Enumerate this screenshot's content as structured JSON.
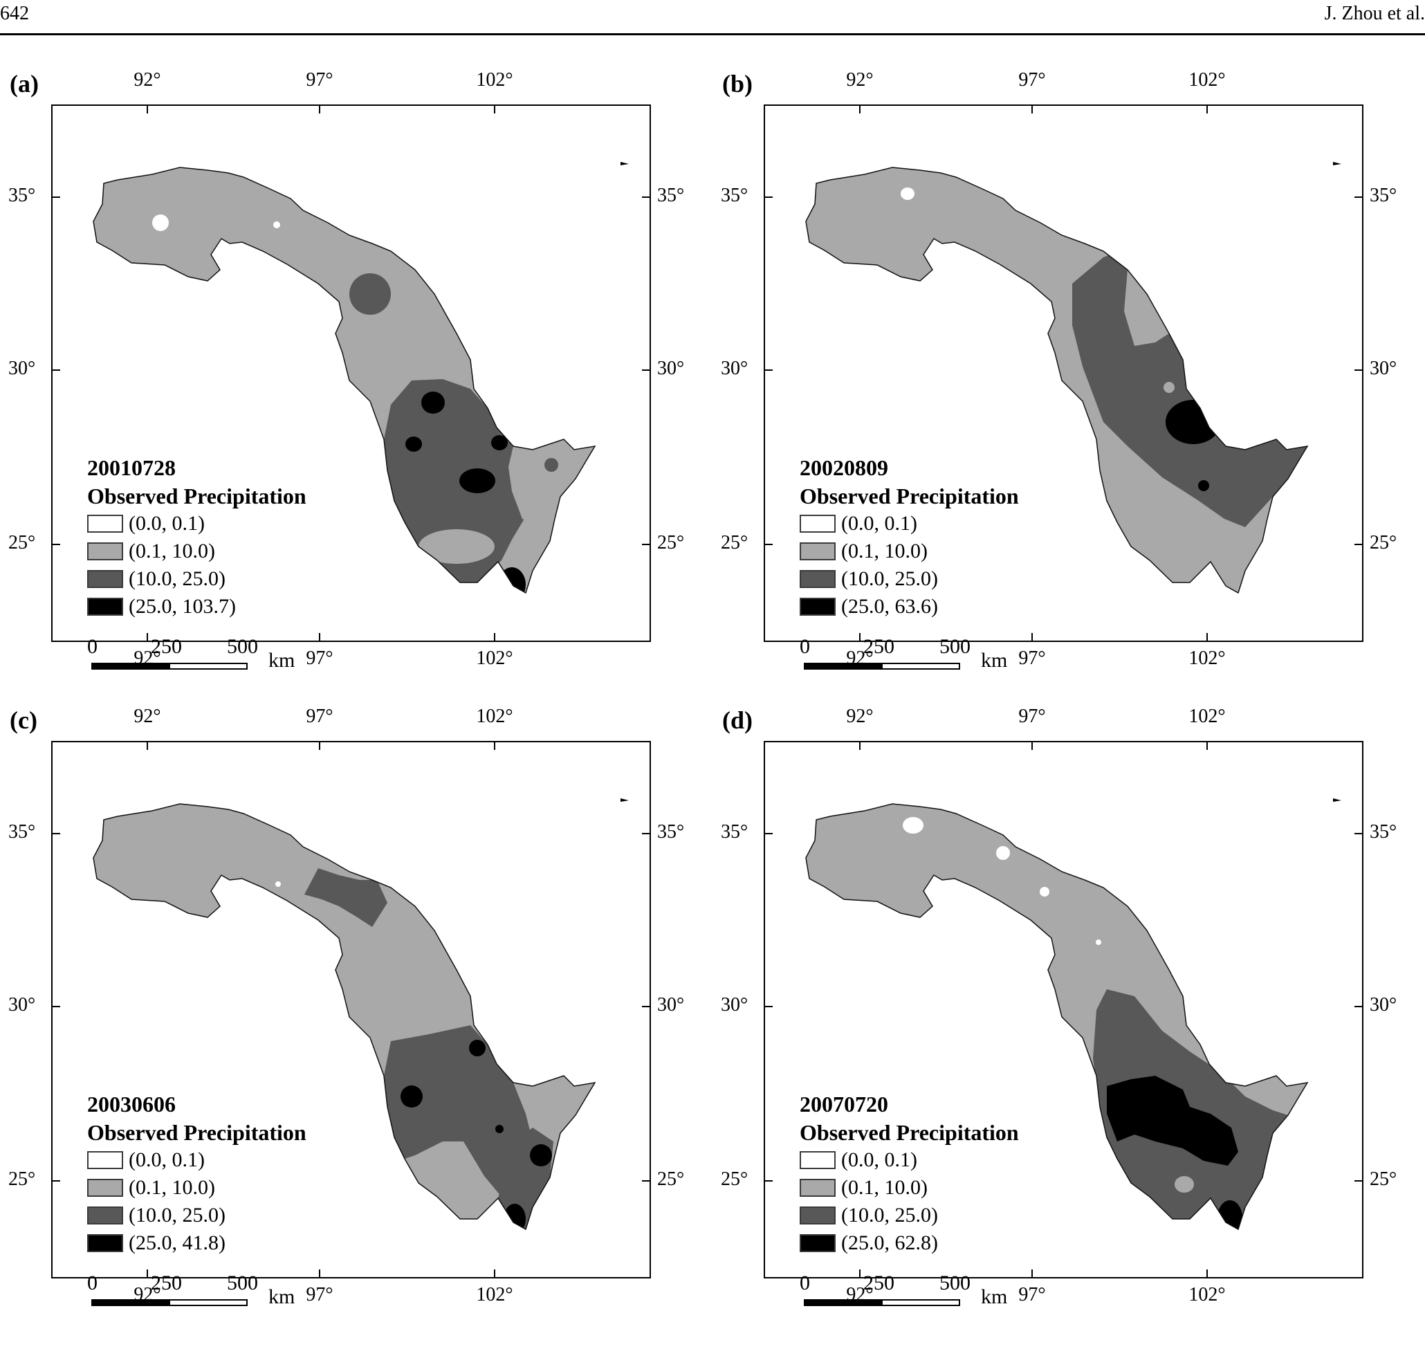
{
  "header": {
    "page_number": "642",
    "running_head": "J. Zhou et al."
  },
  "colors": {
    "class_1": "#ffffff",
    "class_2": "#a9a9a9",
    "class_3": "#585858",
    "class_4": "#000000"
  },
  "axes": {
    "lon_labels": [
      "92°",
      "97°",
      "102°"
    ],
    "lat_labels": [
      "35°",
      "30°",
      "25°"
    ]
  },
  "scale_bar": {
    "ticks": [
      "0",
      "250",
      "500"
    ],
    "unit": "km"
  },
  "panels": [
    {
      "label": "(a)",
      "date": "20010728",
      "title": "Observed Precipitation",
      "legend": [
        "(0.0, 0.1)",
        "(0.1, 10.0)",
        "(10.0, 25.0)",
        "(25.0, 103.7)"
      ]
    },
    {
      "label": "(b)",
      "date": "20020809",
      "title": "Observed Precipitation",
      "legend": [
        "(0.0, 0.1)",
        "(0.1, 10.0)",
        "(10.0, 25.0)",
        "(25.0, 63.6)"
      ]
    },
    {
      "label": "(c)",
      "date": "20030606",
      "title": "Observed Precipitation",
      "legend": [
        "(0.0, 0.1)",
        "(0.1, 10.0)",
        "(10.0, 25.0)",
        "(25.0, 41.8)"
      ]
    },
    {
      "label": "(d)",
      "date": "20070720",
      "title": "Observed Precipitation",
      "legend": [
        "(0.0, 0.1)",
        "(0.1, 10.0)",
        "(10.0, 25.0)",
        "(25.0, 62.8)"
      ]
    }
  ]
}
